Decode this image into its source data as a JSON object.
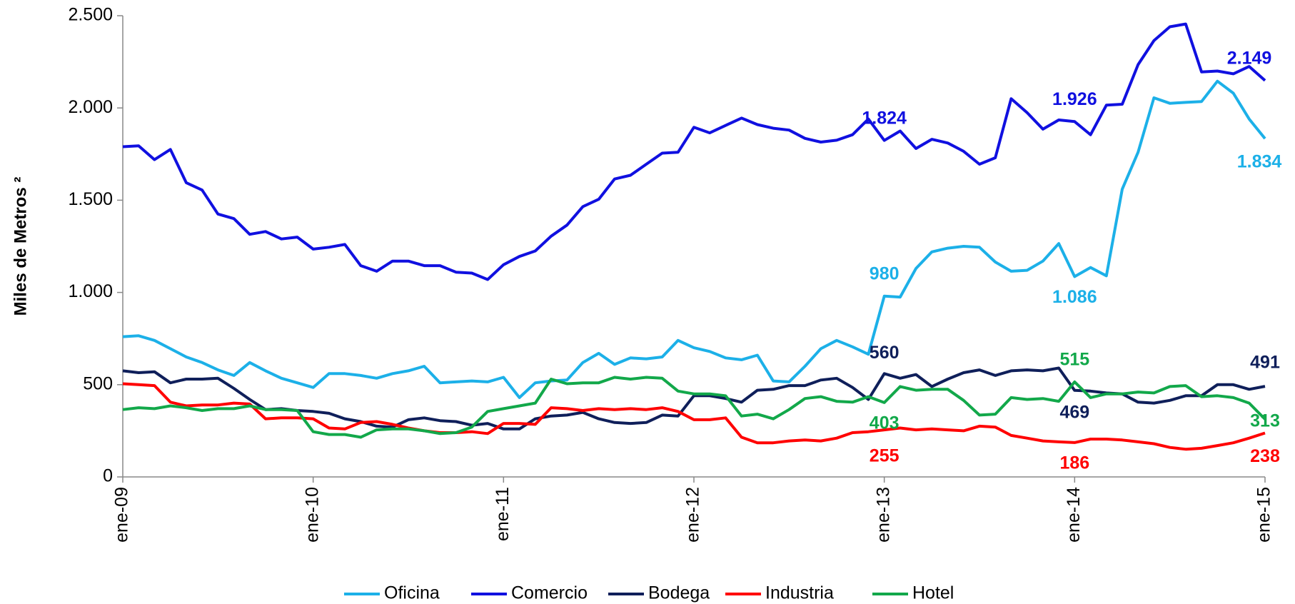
{
  "chart_data": {
    "type": "line",
    "y_label": "Miles de Metros ²",
    "categories": [
      "ene-09",
      null,
      null,
      null,
      null,
      null,
      null,
      null,
      null,
      null,
      null,
      null,
      "ene-10",
      null,
      null,
      null,
      null,
      null,
      null,
      null,
      null,
      null,
      null,
      null,
      "ene-11",
      null,
      null,
      null,
      null,
      null,
      null,
      null,
      null,
      null,
      null,
      null,
      "ene-12",
      null,
      null,
      null,
      null,
      null,
      null,
      null,
      null,
      null,
      null,
      null,
      "ene-13",
      null,
      null,
      null,
      null,
      null,
      null,
      null,
      null,
      null,
      null,
      null,
      "ene-14",
      null,
      null,
      null,
      null,
      null,
      null,
      null,
      null,
      null,
      null,
      null,
      "ene-15"
    ],
    "ylim": [
      0,
      2500
    ],
    "yticks": [
      0,
      500,
      {
        "value": 1000,
        "label": "1.000"
      },
      {
        "value": 1500,
        "label": "1.500"
      },
      {
        "value": 2000,
        "label": "2.000"
      },
      {
        "value": 2500,
        "label": "2.500"
      }
    ],
    "legend": "bottom",
    "series": [
      {
        "name": "Oficina",
        "color": "#1cb0e8",
        "values": [
          760,
          765,
          740,
          695,
          650,
          620,
          580,
          550,
          620,
          575,
          535,
          510,
          485,
          560,
          560,
          550,
          535,
          560,
          575,
          600,
          510,
          515,
          520,
          515,
          540,
          430,
          510,
          520,
          525,
          620,
          670,
          610,
          645,
          640,
          650,
          740,
          700,
          680,
          645,
          635,
          660,
          520,
          515,
          600,
          695,
          740,
          705,
          665,
          980,
          975,
          1130,
          1220,
          1240,
          1250,
          1245,
          1165,
          1115,
          1120,
          1170,
          1265,
          1086,
          1135,
          1090,
          1560,
          1760,
          2055,
          2025,
          2030,
          2035,
          2145,
          2080,
          1940,
          1834
        ],
        "value_labels": [
          null,
          null,
          null,
          null,
          null,
          null,
          null,
          null,
          null,
          null,
          null,
          null,
          null,
          null,
          null,
          null,
          null,
          null,
          null,
          null,
          null,
          null,
          null,
          null,
          null,
          null,
          null,
          null,
          null,
          null,
          null,
          null,
          null,
          null,
          null,
          null,
          null,
          null,
          null,
          null,
          null,
          null,
          null,
          null,
          null,
          null,
          null,
          null,
          "980",
          null,
          null,
          null,
          null,
          null,
          null,
          null,
          null,
          null,
          null,
          null,
          "1.086",
          null,
          null,
          null,
          null,
          null,
          null,
          null,
          null,
          null,
          null,
          null,
          "1.834"
        ]
      },
      {
        "name": "Comercio",
        "color": "#1010e0",
        "values": [
          1790,
          1795,
          1720,
          1775,
          1595,
          1555,
          1425,
          1400,
          1315,
          1330,
          1290,
          1300,
          1235,
          1245,
          1260,
          1145,
          1115,
          1170,
          1170,
          1145,
          1145,
          1110,
          1105,
          1070,
          1150,
          1195,
          1225,
          1305,
          1365,
          1465,
          1505,
          1615,
          1635,
          1695,
          1755,
          1760,
          1895,
          1865,
          1905,
          1945,
          1910,
          1890,
          1880,
          1835,
          1815,
          1825,
          1855,
          1940,
          1824,
          1875,
          1780,
          1830,
          1810,
          1765,
          1695,
          1730,
          2050,
          1975,
          1885,
          1935,
          1926,
          1855,
          2015,
          2020,
          2235,
          2365,
          2440,
          2455,
          2195,
          2200,
          2185,
          2225,
          2149
        ],
        "value_labels": [
          null,
          null,
          null,
          null,
          null,
          null,
          null,
          null,
          null,
          null,
          null,
          null,
          null,
          null,
          null,
          null,
          null,
          null,
          null,
          null,
          null,
          null,
          null,
          null,
          null,
          null,
          null,
          null,
          null,
          null,
          null,
          null,
          null,
          null,
          null,
          null,
          null,
          null,
          null,
          null,
          null,
          null,
          null,
          null,
          null,
          null,
          null,
          null,
          "1.824",
          null,
          null,
          null,
          null,
          null,
          null,
          null,
          null,
          null,
          null,
          null,
          "1.926",
          null,
          null,
          null,
          null,
          null,
          null,
          null,
          null,
          null,
          null,
          null,
          "2.149"
        ]
      },
      {
        "name": "Bodega",
        "color": "#0f1f5a",
        "values": [
          575,
          565,
          570,
          510,
          530,
          530,
          535,
          480,
          420,
          365,
          370,
          360,
          355,
          345,
          315,
          300,
          275,
          270,
          310,
          320,
          305,
          300,
          280,
          290,
          260,
          260,
          315,
          330,
          335,
          350,
          315,
          295,
          290,
          295,
          335,
          330,
          440,
          440,
          425,
          405,
          470,
          475,
          495,
          495,
          525,
          535,
          485,
          420,
          560,
          535,
          555,
          490,
          530,
          565,
          580,
          550,
          575,
          580,
          575,
          590,
          469,
          465,
          455,
          450,
          405,
          400,
          415,
          440,
          440,
          500,
          500,
          475,
          491
        ],
        "value_labels": [
          null,
          null,
          null,
          null,
          null,
          null,
          null,
          null,
          null,
          null,
          null,
          null,
          null,
          null,
          null,
          null,
          null,
          null,
          null,
          null,
          null,
          null,
          null,
          null,
          null,
          null,
          null,
          null,
          null,
          null,
          null,
          null,
          null,
          null,
          null,
          null,
          null,
          null,
          null,
          null,
          null,
          null,
          null,
          null,
          null,
          null,
          null,
          null,
          "560",
          null,
          null,
          null,
          null,
          null,
          null,
          null,
          null,
          null,
          null,
          null,
          "469",
          null,
          null,
          null,
          null,
          null,
          null,
          null,
          null,
          null,
          null,
          null,
          "491"
        ]
      },
      {
        "name": "Industria",
        "color": "#ff0000",
        "values": [
          505,
          500,
          495,
          405,
          385,
          390,
          390,
          400,
          395,
          315,
          320,
          320,
          315,
          265,
          260,
          295,
          300,
          285,
          265,
          250,
          240,
          240,
          245,
          235,
          290,
          290,
          285,
          375,
          370,
          360,
          370,
          365,
          370,
          365,
          375,
          355,
          310,
          310,
          320,
          215,
          185,
          185,
          195,
          200,
          195,
          210,
          240,
          245,
          255,
          265,
          255,
          260,
          255,
          250,
          275,
          270,
          225,
          210,
          195,
          190,
          186,
          205,
          205,
          200,
          190,
          180,
          160,
          150,
          155,
          170,
          185,
          210,
          238
        ],
        "value_labels": [
          null,
          null,
          null,
          null,
          null,
          null,
          null,
          null,
          null,
          null,
          null,
          null,
          null,
          null,
          null,
          null,
          null,
          null,
          null,
          null,
          null,
          null,
          null,
          null,
          null,
          null,
          null,
          null,
          null,
          null,
          null,
          null,
          null,
          null,
          null,
          null,
          null,
          null,
          null,
          null,
          null,
          null,
          null,
          null,
          null,
          null,
          null,
          null,
          "255",
          null,
          null,
          null,
          null,
          null,
          null,
          null,
          null,
          null,
          null,
          null,
          "186",
          null,
          null,
          null,
          null,
          null,
          null,
          null,
          null,
          null,
          null,
          null,
          "238"
        ]
      },
      {
        "name": "Hotel",
        "color": "#12a84a",
        "values": [
          365,
          375,
          370,
          385,
          375,
          360,
          370,
          370,
          385,
          365,
          365,
          360,
          245,
          230,
          230,
          215,
          255,
          260,
          260,
          250,
          235,
          240,
          270,
          355,
          370,
          385,
          400,
          530,
          505,
          510,
          510,
          540,
          530,
          540,
          535,
          465,
          450,
          450,
          440,
          330,
          340,
          315,
          365,
          425,
          435,
          410,
          405,
          435,
          403,
          490,
          470,
          475,
          475,
          415,
          335,
          340,
          430,
          420,
          425,
          410,
          515,
          430,
          450,
          450,
          460,
          455,
          490,
          495,
          435,
          440,
          430,
          400,
          313
        ],
        "value_labels": [
          null,
          null,
          null,
          null,
          null,
          null,
          null,
          null,
          null,
          null,
          null,
          null,
          null,
          null,
          null,
          null,
          null,
          null,
          null,
          null,
          null,
          null,
          null,
          null,
          null,
          null,
          null,
          null,
          null,
          null,
          null,
          null,
          null,
          null,
          null,
          null,
          null,
          null,
          null,
          null,
          null,
          null,
          null,
          null,
          null,
          null,
          null,
          null,
          "403",
          null,
          null,
          null,
          null,
          null,
          null,
          null,
          null,
          null,
          null,
          null,
          "515",
          null,
          null,
          null,
          null,
          null,
          null,
          null,
          null,
          null,
          null,
          null,
          "313"
        ]
      }
    ]
  }
}
